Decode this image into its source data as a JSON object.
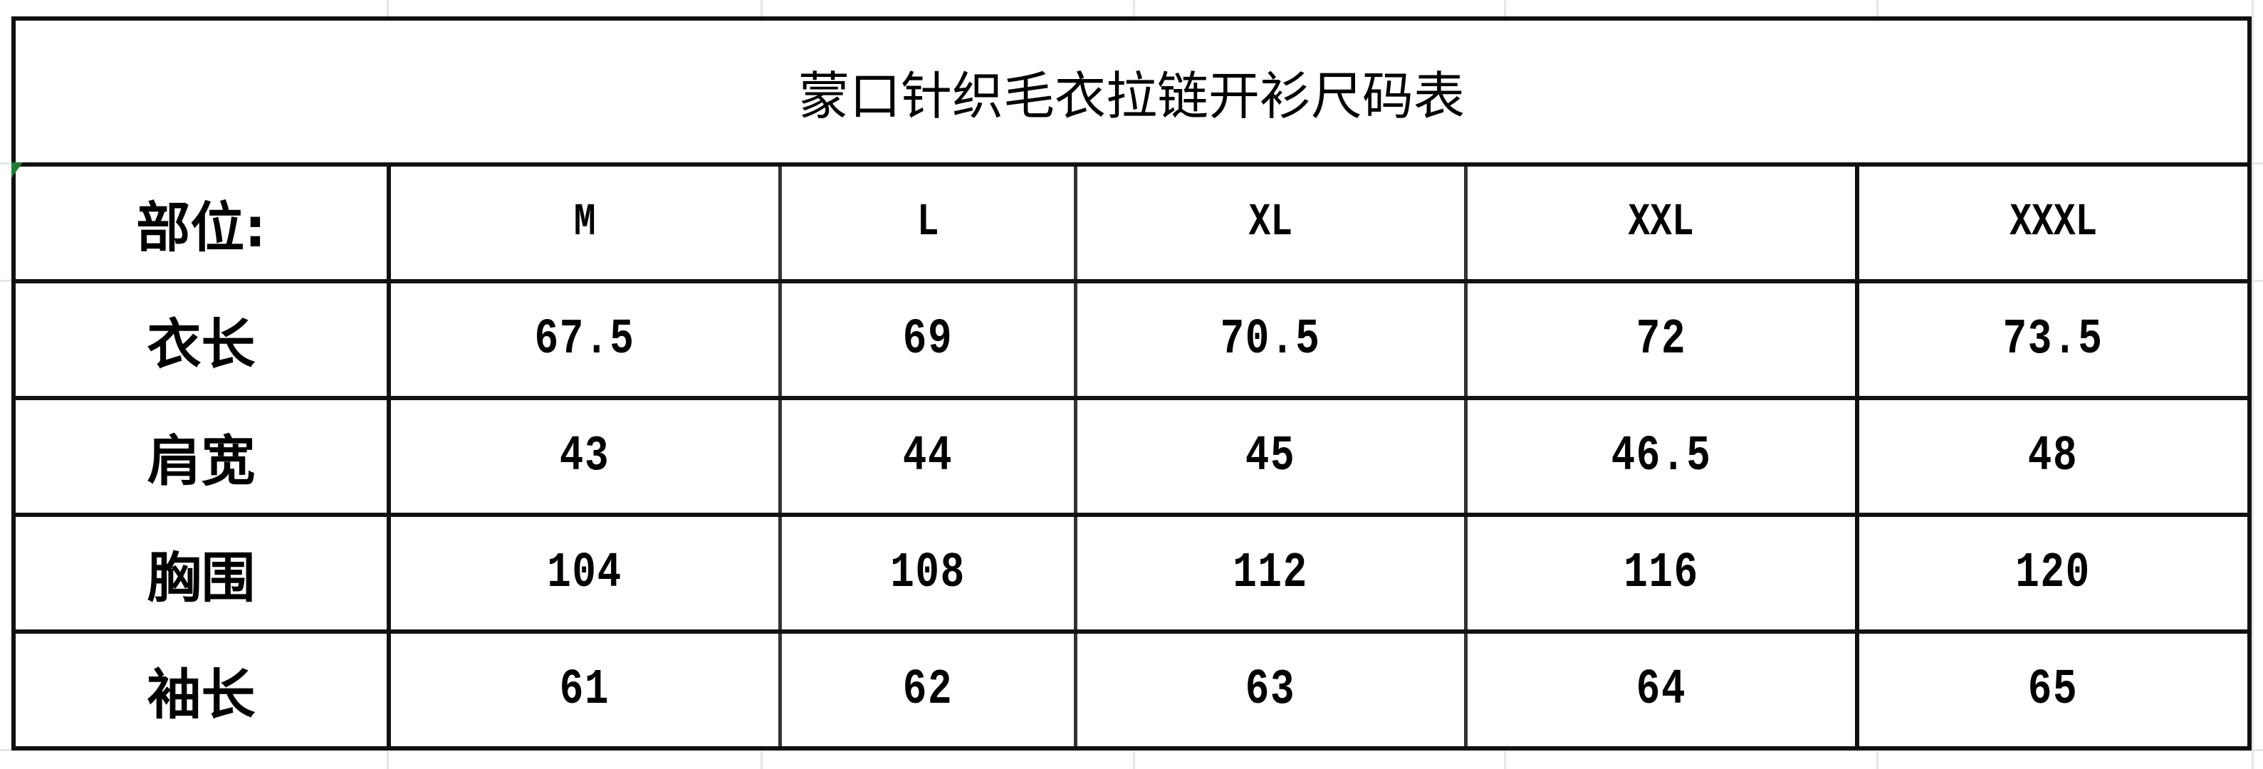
{
  "title": "蒙口针织毛衣拉链开衫尺码表",
  "header": {
    "label": "部位:",
    "sizes": [
      "M",
      "L",
      "XL",
      "XXL",
      "XXXL"
    ]
  },
  "rows": [
    {
      "label": "衣长",
      "values": [
        "67.5",
        "69",
        "70.5",
        "72",
        "73.5"
      ]
    },
    {
      "label": "肩宽",
      "values": [
        "43",
        "44",
        "45",
        "46.5",
        "48"
      ]
    },
    {
      "label": "胸围",
      "values": [
        "104",
        "108",
        "112",
        "116",
        "120"
      ]
    },
    {
      "label": "袖长",
      "values": [
        "61",
        "62",
        "63",
        "64",
        "65"
      ]
    }
  ],
  "colors": {
    "border": "#111111",
    "cell_marker": "#1e7b34",
    "gridline": "#e6e6e6"
  }
}
